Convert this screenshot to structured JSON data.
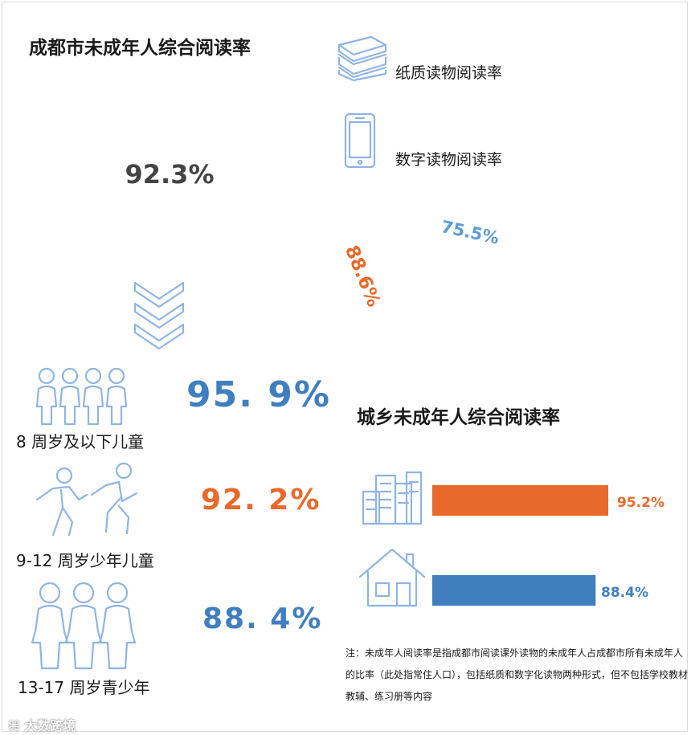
{
  "colors": {
    "blue": "#5b9bd5",
    "light_blue": "#7aaad8",
    "dark_blue": "#3f7fc0",
    "orange": "#e8692a",
    "icon_outline": "#8fb4e3"
  },
  "overall": {
    "title": "成都市未成年人综合阅读率",
    "value_label": "92.3%"
  },
  "medium": {
    "paper_label": "纸质读物阅读率",
    "digital_label": "数字读物阅读率",
    "paper_value_label": "88.6%",
    "digital_value_label": "75.5%"
  },
  "age_groups": [
    {
      "label": "8 周岁及以下儿童",
      "value_label": "95. 9%"
    },
    {
      "label": "9-12 周岁少年儿童",
      "value_label": "92. 2%"
    },
    {
      "label": "13-17 周岁青少年",
      "value_label": "88. 4%"
    }
  ],
  "urban_rural": {
    "title": "城乡未成年人综合阅读率",
    "urban_value_label": "95.2%",
    "rural_value_label": "88.4%"
  },
  "note": "注：未成年人阅读率是指成都市阅读课外读物的未成年人占成都市所有未成年人的比率（此处指常住人口），包括纸质和数字化读物两种形式，但不包括学校教材教辅、练习册等内容",
  "watermark": "大数跨境",
  "chart_data": [
    {
      "type": "pie",
      "title": "成都市未成年人综合阅读率",
      "values": [
        92.3
      ],
      "unit": "%"
    },
    {
      "type": "pie",
      "series": [
        {
          "name": "纸质读物阅读率",
          "values": [
            88.6
          ]
        },
        {
          "name": "数字读物阅读率",
          "values": [
            75.5
          ]
        }
      ],
      "unit": "%"
    },
    {
      "type": "table",
      "categories": [
        "8 周岁及以下儿童",
        "9-12 周岁少年儿童",
        "13-17 周岁青少年"
      ],
      "values": [
        95.9,
        92.2,
        88.4
      ],
      "unit": "%"
    },
    {
      "type": "bar",
      "title": "城乡未成年人综合阅读率",
      "values": [
        95.2,
        88.4
      ],
      "unit": "%"
    }
  ]
}
